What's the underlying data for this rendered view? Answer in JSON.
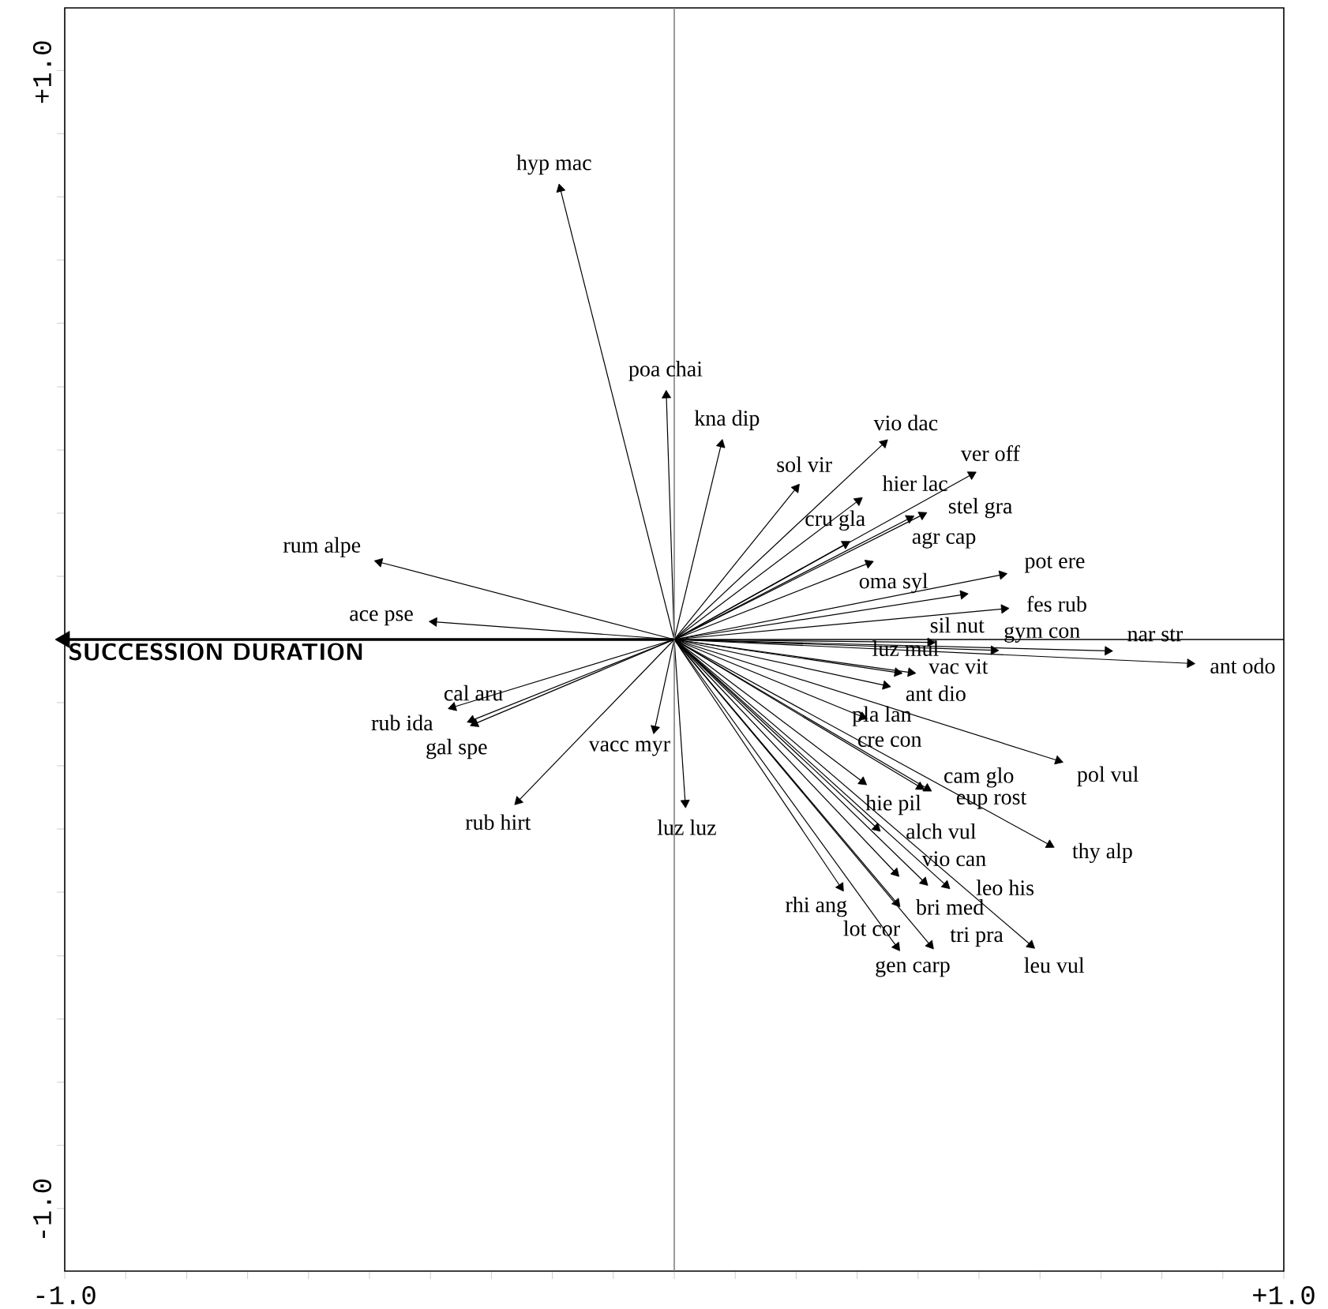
{
  "chart_data": {
    "type": "scatter",
    "xlim": [
      -1.0,
      1.0
    ],
    "ylim": [
      -1.11,
      1.11
    ],
    "xticks": [
      {
        "value": -1.0,
        "label": "-1.0"
      },
      {
        "value": -0.9,
        "label": null
      },
      {
        "value": -0.8,
        "label": null
      },
      {
        "value": -0.7,
        "label": null
      },
      {
        "value": -0.6,
        "label": null
      },
      {
        "value": -0.5,
        "label": null
      },
      {
        "value": -0.4,
        "label": null
      },
      {
        "value": -0.3,
        "label": null
      },
      {
        "value": -0.2,
        "label": null
      },
      {
        "value": -0.1,
        "label": null
      },
      {
        "value": 0,
        "label": null
      },
      {
        "value": 0.1,
        "label": null
      },
      {
        "value": 0.2,
        "label": null
      },
      {
        "value": 0.3,
        "label": null
      },
      {
        "value": 0.4,
        "label": null
      },
      {
        "value": 0.5,
        "label": null
      },
      {
        "value": 0.6,
        "label": null
      },
      {
        "value": 0.7,
        "label": null
      },
      {
        "value": 0.8,
        "label": null
      },
      {
        "value": 0.9,
        "label": null
      },
      {
        "value": 1.0,
        "label": "+1.0"
      }
    ],
    "yticks": [
      {
        "value": -1.0,
        "label": "-1.0"
      },
      {
        "value": -0.889,
        "label": null
      },
      {
        "value": -0.778,
        "label": null
      },
      {
        "value": -0.667,
        "label": null
      },
      {
        "value": -0.556,
        "label": null
      },
      {
        "value": -0.444,
        "label": null
      },
      {
        "value": -0.333,
        "label": null
      },
      {
        "value": -0.222,
        "label": null
      },
      {
        "value": -0.111,
        "label": null
      },
      {
        "value": 0,
        "label": null
      },
      {
        "value": 0.111,
        "label": null
      },
      {
        "value": 0.222,
        "label": null
      },
      {
        "value": 0.333,
        "label": null
      },
      {
        "value": 0.444,
        "label": null
      },
      {
        "value": 0.556,
        "label": null
      },
      {
        "value": 0.667,
        "label": null
      },
      {
        "value": 0.778,
        "label": null
      },
      {
        "value": 0.889,
        "label": null
      },
      {
        "value": 1.0,
        "label": "+1.0"
      }
    ],
    "tick_labels": "xy",
    "marker": "triangle",
    "grid": false,
    "ref_lines": [
      {
        "axis": "x",
        "value": 0,
        "color": "#808080"
      },
      {
        "axis": "y",
        "value": 0,
        "color": "#000000"
      }
    ],
    "series": [
      {
        "color": "#000000",
        "x": [
          -0.187,
          -0.013,
          -0.484,
          -0.394,
          -0.363,
          -0.332,
          -0.327,
          -0.032,
          -0.256,
          0.018,
          0.077,
          0.344,
          0.2,
          0.302,
          0.488,
          0.407,
          0.386,
          0.281,
          0.319,
          0.538,
          0.474,
          0.541,
          0.42,
          0.524,
          0.711,
          0.846,
          0.366,
          0.388,
          0.347,
          0.309,
          0.309,
          0.403,
          0.415,
          0.332,
          0.616,
          0.363,
          0.41,
          0.446,
          0.273,
          0.365,
          0.365,
          0.42,
          0.585,
          0.63
        ],
        "values": [
          0.792,
          0.429,
          0.136,
          0.031,
          -0.119,
          -0.142,
          -0.148,
          -0.157,
          -0.284,
          -0.287,
          0.343,
          0.345,
          0.266,
          0.244,
          0.29,
          0.219,
          0.213,
          0.168,
          0.134,
          0.114,
          0.079,
          0.054,
          -0.005,
          -0.019,
          -0.02,
          -0.042,
          -0.058,
          -0.058,
          -0.081,
          -0.136,
          -0.25,
          -0.259,
          -0.262,
          -0.331,
          -0.361,
          -0.41,
          -0.426,
          -0.432,
          -0.435,
          -0.463,
          -0.54,
          -0.537,
          -0.537,
          -0.213
        ]
      },
      {
        "name": "SUCCESSION DURATION",
        "color": "#000000",
        "x": [
          -1.0
        ],
        "values": [
          0
        ]
      }
    ],
    "annotations": [
      {
        "text": "hyp mac",
        "x": -0.187,
        "y": 0.792
      },
      {
        "text": "poa chai",
        "x": -0.013,
        "y": 0.429
      },
      {
        "text": "rum alpe",
        "x": -0.484,
        "y": 0.136
      },
      {
        "text": "ace pse",
        "x": -0.394,
        "y": 0.031
      },
      {
        "text": "rub ida",
        "x": -0.363,
        "y": -0.119
      },
      {
        "text": "gal spe",
        "x": -0.332,
        "y": -0.142
      },
      {
        "text": "cal aru",
        "x": -0.327,
        "y": -0.148
      },
      {
        "text": "vacc myr",
        "x": -0.032,
        "y": -0.157
      },
      {
        "text": "rub hirt",
        "x": -0.256,
        "y": -0.284
      },
      {
        "text": "luz luz",
        "x": 0.018,
        "y": -0.287
      },
      {
        "text": "kna dip",
        "x": 0.077,
        "y": 0.343
      },
      {
        "text": "vio dac",
        "x": 0.344,
        "y": 0.345
      },
      {
        "text": "sol vir",
        "x": 0.2,
        "y": 0.266
      },
      {
        "text": "hier lac",
        "x": 0.302,
        "y": 0.244
      },
      {
        "text": "ver off",
        "x": 0.488,
        "y": 0.29
      },
      {
        "text": "stel gra",
        "x": 0.407,
        "y": 0.219
      },
      {
        "text": "agr cap",
        "x": 0.386,
        "y": 0.213
      },
      {
        "text": "cru gla",
        "x": 0.281,
        "y": 0.168
      },
      {
        "text": "oma syl",
        "x": 0.319,
        "y": 0.134
      },
      {
        "text": "pot ere",
        "x": 0.538,
        "y": 0.114
      },
      {
        "text": "sil nut",
        "x": 0.474,
        "y": 0.079
      },
      {
        "text": "fes rub",
        "x": 0.541,
        "y": 0.054
      },
      {
        "text": "vac vit",
        "x": 0.42,
        "y": -0.005
      },
      {
        "text": "gym con",
        "x": 0.524,
        "y": -0.019
      },
      {
        "text": "nar str",
        "x": 0.711,
        "y": -0.02
      },
      {
        "text": "ant odo",
        "x": 0.846,
        "y": -0.042
      },
      {
        "text": "ant dio",
        "x": 0.366,
        "y": -0.058
      },
      {
        "text": "luz mul",
        "x": 0.388,
        "y": -0.058
      },
      {
        "text": "pla lan",
        "x": 0.347,
        "y": -0.081
      },
      {
        "text": "cre con",
        "x": 0.309,
        "y": -0.136
      },
      {
        "text": "hie pil",
        "x": 0.309,
        "y": -0.25
      },
      {
        "text": "cam glo",
        "x": 0.403,
        "y": -0.259
      },
      {
        "text": "eup rost",
        "x": 0.415,
        "y": -0.262
      },
      {
        "text": "alch vul",
        "x": 0.332,
        "y": -0.331
      },
      {
        "text": "thy alp",
        "x": 0.616,
        "y": -0.361
      },
      {
        "text": "vio can",
        "x": 0.363,
        "y": -0.41
      },
      {
        "text": "bri med",
        "x": 0.41,
        "y": -0.426
      },
      {
        "text": "leo his",
        "x": 0.446,
        "y": -0.432
      },
      {
        "text": "rhi ang",
        "x": 0.273,
        "y": -0.435
      },
      {
        "text": "lot cor",
        "x": 0.365,
        "y": -0.463
      },
      {
        "text": "gen carp",
        "x": 0.365,
        "y": -0.54
      },
      {
        "text": "tri pra",
        "x": 0.42,
        "y": -0.537
      },
      {
        "text": "leu vul",
        "x": 0.585,
        "y": -0.537
      },
      {
        "text": "pol vul",
        "x": 0.63,
        "y": -0.213
      }
    ]
  }
}
